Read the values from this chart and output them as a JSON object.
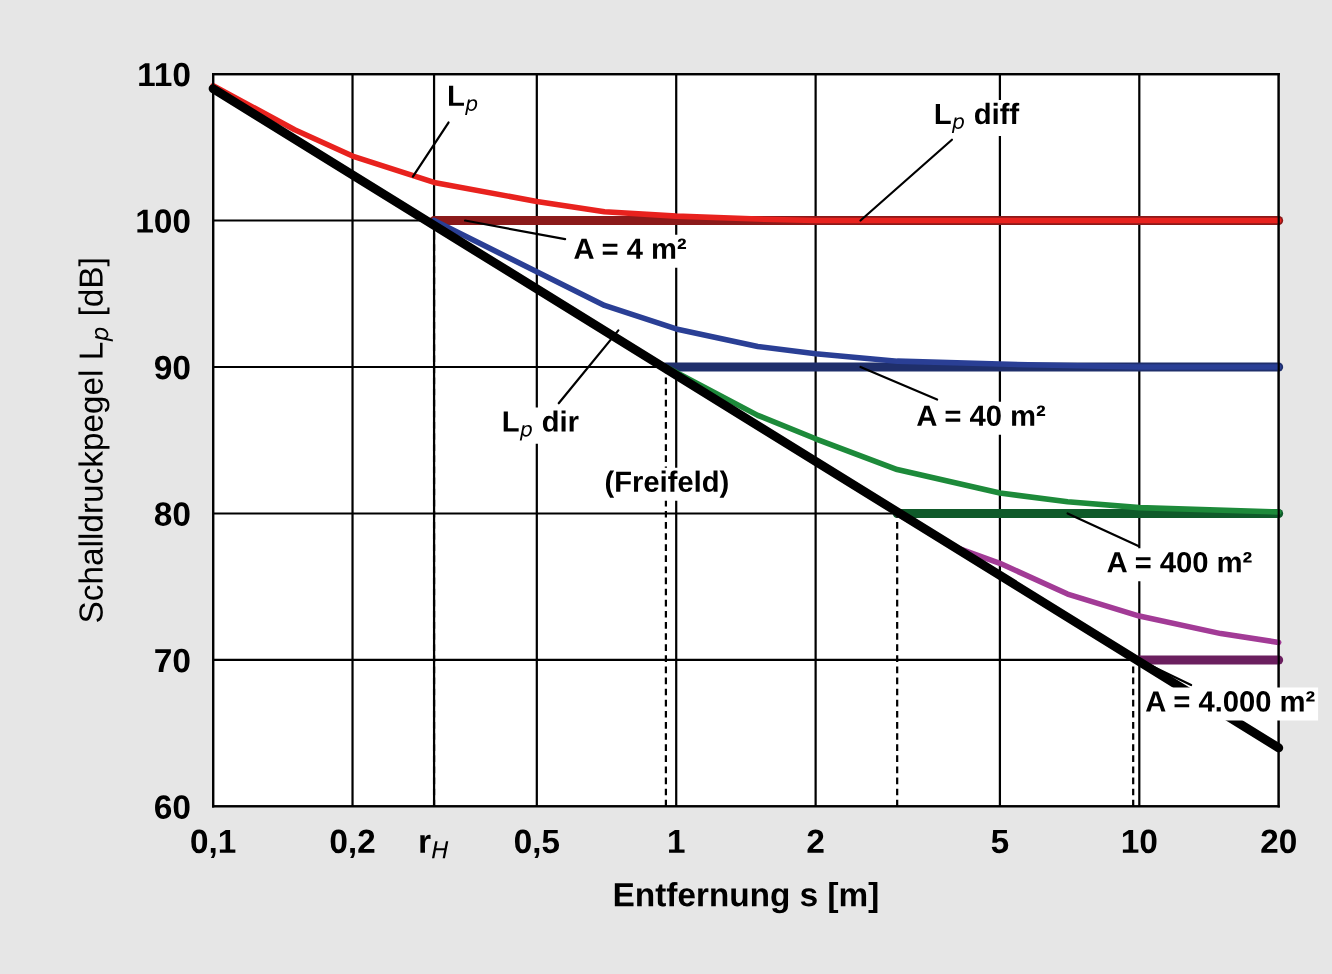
{
  "chart_data": {
    "type": "line",
    "xlabel": "Entfernung s [m]",
    "ylabel": "Schalldruckpegel L$_{p}$ [dB]",
    "log": "x",
    "xlim": [
      0.1,
      20
    ],
    "ylim": [
      60,
      110
    ],
    "xticks": [
      {
        "value": 0.1,
        "label": "0,1"
      },
      {
        "value": 0.2,
        "label": "0,2"
      },
      {
        "value": 0.3,
        "label": "r$_{H}$"
      },
      {
        "value": 0.5,
        "label": "0,5"
      },
      1,
      2,
      5,
      10,
      20
    ],
    "yticks": [
      60,
      70,
      80,
      90,
      100,
      110
    ],
    "grid": true,
    "legend": false,
    "series": [
      {
        "color": "#8b1a1a",
        "x": [
          0.3,
          20
        ],
        "values": [
          100,
          100
        ]
      },
      {
        "color": "#1f2f6b",
        "x": [
          0.95,
          20
        ],
        "values": [
          90,
          90
        ]
      },
      {
        "color": "#0f5a2a",
        "x": [
          3,
          20
        ],
        "values": [
          80,
          80
        ]
      },
      {
        "color": "#6b1f5f",
        "x": [
          10,
          20
        ],
        "values": [
          70,
          70
        ]
      },
      {
        "color": "#000000",
        "line_style": "dashed",
        "x": [
          0.3,
          0.3
        ],
        "values": [
          60,
          100
        ]
      },
      {
        "color": "#000000",
        "line_style": "dashed",
        "x": [
          0.95,
          0.95
        ],
        "values": [
          60,
          90
        ]
      },
      {
        "color": "#000000",
        "line_style": "dashed",
        "x": [
          3,
          3
        ],
        "values": [
          60,
          80
        ]
      },
      {
        "color": "#000000",
        "line_style": "dashed",
        "x": [
          9.7,
          9.7
        ],
        "values": [
          60,
          70
        ]
      },
      {
        "color": "#e8221e",
        "x": [
          0.1,
          0.15,
          0.2,
          0.3,
          0.5,
          0.7,
          1,
          1.5,
          2,
          5,
          20
        ],
        "values": [
          109.2,
          106.2,
          104.4,
          102.6,
          101.3,
          100.6,
          100.3,
          100.1,
          100,
          100,
          100
        ]
      },
      {
        "color": "#2a3f95",
        "x": [
          0.3,
          0.5,
          0.7,
          1,
          1.5,
          2,
          3,
          5,
          10,
          20
        ],
        "values": [
          100,
          96.5,
          94.2,
          92.6,
          91.4,
          90.9,
          90.4,
          90.2,
          90,
          90
        ]
      },
      {
        "color": "#1d8a3a",
        "x": [
          0.95,
          1.5,
          2,
          3,
          5,
          7,
          10,
          20
        ],
        "values": [
          90,
          86.7,
          85.1,
          83,
          81.4,
          80.8,
          80.4,
          80.1
        ]
      },
      {
        "color": "#a23b96",
        "x": [
          3,
          4,
          5,
          7,
          10,
          15,
          20
        ],
        "values": [
          80,
          77.7,
          76.6,
          74.5,
          73,
          71.8,
          71.2
        ]
      },
      {
        "color": "#000000",
        "x": [
          0.1,
          20
        ],
        "values": [
          109,
          64
        ]
      }
    ],
    "annotations": [
      {
        "text": "L$_{p}$",
        "x": 0.27,
        "y": 103
      },
      {
        "text": "L$_{p}$ diff",
        "x": 2.5,
        "y": 100
      },
      {
        "text": "A = 4 m²",
        "x": 0.35,
        "y": 100
      },
      {
        "text": "A = 40 m²",
        "x": 2.5,
        "y": 90
      },
      {
        "text": "A = 400 m²",
        "x": 7,
        "y": 80
      },
      {
        "text": "A = 4.000 m²",
        "x": 10,
        "y": 70
      },
      {
        "text": "L$_{p}$ dir",
        "x": 0.75,
        "y": 92.5
      },
      "(Freifeld)"
    ]
  }
}
